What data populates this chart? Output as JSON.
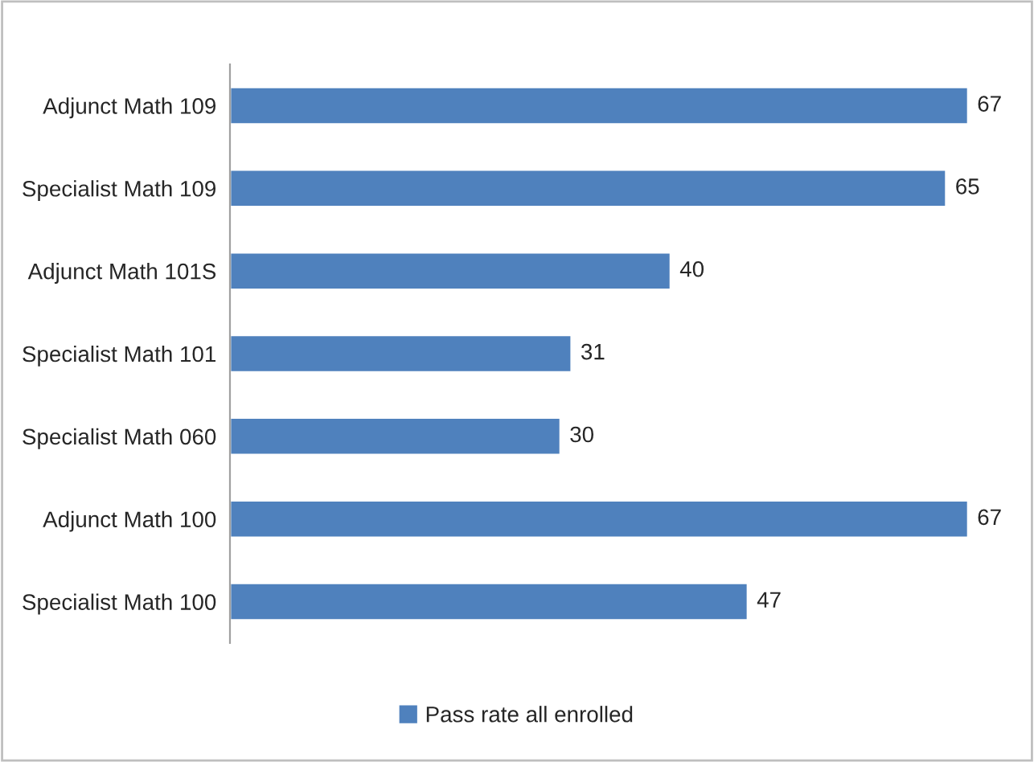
{
  "chart_data": {
    "type": "bar",
    "orientation": "horizontal",
    "categories": [
      "Adjunct Math 109",
      "Specialist Math 109",
      "Adjunct Math 101S",
      "Specialist Math 101",
      "Specialist Math 060",
      "Adjunct Math 100",
      "Specialist Math 100"
    ],
    "series": [
      {
        "name": "Pass rate all enrolled",
        "color": "#4f81bd",
        "values": [
          67,
          65,
          40,
          31,
          30,
          67,
          47
        ]
      }
    ],
    "data_labels": true,
    "legend": "bottom",
    "grid": false
  }
}
